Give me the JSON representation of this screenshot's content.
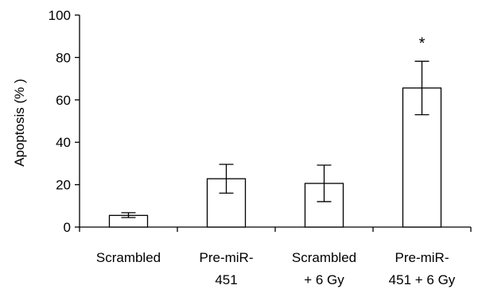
{
  "chart_data": {
    "type": "bar",
    "title": "",
    "xlabel": "",
    "ylabel": "Apoptosis (% )",
    "ylim": [
      0,
      100
    ],
    "yticks": [
      0,
      20,
      40,
      60,
      80,
      100
    ],
    "grid": false,
    "categories": [
      [
        "Scrambled"
      ],
      [
        "Pre-miR-",
        "451"
      ],
      [
        "Scrambled",
        "+ 6 Gy"
      ],
      [
        "Pre-miR-",
        "451 + 6 Gy"
      ]
    ],
    "values": [
      5.5,
      22.8,
      20.6,
      65.6
    ],
    "error_low": [
      4.5,
      16.0,
      12.0,
      53.0
    ],
    "error_high": [
      6.8,
      29.6,
      29.2,
      78.2
    ],
    "annotations": [
      {
        "category_index": 3,
        "text": "*"
      }
    ],
    "colors": {
      "bar_fill": "#ffffff",
      "stroke": "#000000"
    }
  }
}
